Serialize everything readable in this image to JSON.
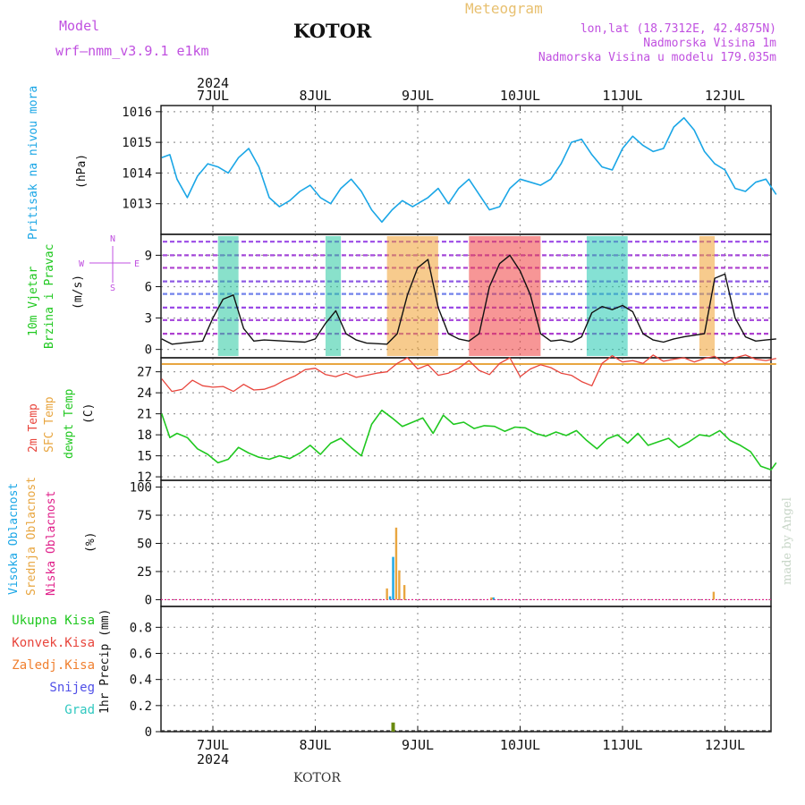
{
  "header": {
    "model_label": "Model",
    "model_name": "wrf–nmm_v3.9.1  e1km",
    "station": "KOTOR",
    "meteogram": "Meteogram",
    "lonlat": "lon,lat (18.7312E, 42.4875N)",
    "altitude": "Nadmorska Visina 1m",
    "model_altitude": "Nadmorska Visina u modelu 179.035m",
    "watermark": "made by Angel",
    "footer_station": "KOTOR"
  },
  "colors": {
    "pressure": "#1aa6e6",
    "t2m": "#e8453c",
    "sfc": "#e8a640",
    "dewpoint": "#20c820",
    "model": "#c050e0",
    "meteogram": "#e8c070"
  },
  "chart_data": [
    {
      "type": "line",
      "panel": "pressure",
      "ylabel": "(hPa)",
      "side_label": "Pritisak na nivou mora",
      "x_ticks": [
        "7JUL",
        "8JUL",
        "9JUL",
        "10JUL",
        "11JUL",
        "12JUL"
      ],
      "top_year": "2024",
      "yticks": [
        1013,
        1014,
        1015,
        1016
      ],
      "ylim": [
        1012.0,
        1016.2
      ],
      "series": [
        {
          "name": "Pritisak na nivou mora",
          "x": [
            -0.5,
            -0.42,
            -0.35,
            -0.25,
            -0.15,
            -0.05,
            0.05,
            0.15,
            0.25,
            0.35,
            0.45,
            0.55,
            0.65,
            0.75,
            0.85,
            0.95,
            1.05,
            1.15,
            1.25,
            1.35,
            1.45,
            1.55,
            1.65,
            1.75,
            1.85,
            1.95,
            2.0,
            2.1,
            2.2,
            2.3,
            2.4,
            2.5,
            2.6,
            2.7,
            2.8,
            2.9,
            3.0,
            3.1,
            3.2,
            3.3,
            3.4,
            3.5,
            3.6,
            3.7,
            3.8,
            3.9,
            4.0,
            4.1,
            4.2,
            4.3,
            4.4,
            4.5,
            4.6,
            4.7,
            4.8,
            4.9,
            5.0,
            5.1,
            5.2,
            5.3,
            5.4,
            5.5
          ],
          "values": [
            1014.5,
            1014.6,
            1013.8,
            1013.2,
            1013.9,
            1014.3,
            1014.2,
            1014.0,
            1014.5,
            1014.8,
            1014.2,
            1013.2,
            1012.9,
            1013.1,
            1013.4,
            1013.6,
            1013.2,
            1013.0,
            1013.5,
            1013.8,
            1013.4,
            1012.8,
            1012.4,
            1012.8,
            1013.1,
            1012.9,
            1013.0,
            1013.2,
            1013.5,
            1013.0,
            1013.5,
            1013.8,
            1013.3,
            1012.8,
            1012.9,
            1013.5,
            1013.8,
            1013.7,
            1013.6,
            1013.8,
            1014.3,
            1015.0,
            1015.1,
            1014.6,
            1014.2,
            1014.1,
            1014.8,
            1015.2,
            1014.9,
            1014.7,
            1014.8,
            1015.5,
            1015.8,
            1015.4,
            1014.7,
            1014.3,
            1014.1,
            1013.5,
            1013.4,
            1013.7,
            1013.8,
            1013.3
          ]
        }
      ]
    },
    {
      "type": "line",
      "panel": "wind",
      "ylabel": "(m/s)",
      "side_labels": [
        "10m Vjetar",
        "Brzina i Pravac"
      ],
      "compass": [
        "N",
        "S",
        "W",
        "E"
      ],
      "yticks": [
        0,
        3,
        6,
        9
      ],
      "ylim": [
        -0.8,
        11
      ],
      "series": [
        {
          "name": "10m Vjetar",
          "x": [
            -0.5,
            -0.4,
            -0.3,
            -0.1,
            0.0,
            0.1,
            0.2,
            0.3,
            0.4,
            0.5,
            0.7,
            0.9,
            1.0,
            1.1,
            1.2,
            1.3,
            1.4,
            1.5,
            1.7,
            1.8,
            1.9,
            2.0,
            2.1,
            2.2,
            2.3,
            2.4,
            2.5,
            2.6,
            2.7,
            2.8,
            2.9,
            3.0,
            3.1,
            3.2,
            3.3,
            3.4,
            3.5,
            3.6,
            3.7,
            3.8,
            3.9,
            4.0,
            4.1,
            4.2,
            4.3,
            4.4,
            4.5,
            4.6,
            4.8,
            4.9,
            5.0,
            5.1,
            5.2,
            5.3,
            5.4,
            5.5
          ],
          "values": [
            1.0,
            0.5,
            0.6,
            0.8,
            3.0,
            4.8,
            5.2,
            2.0,
            0.8,
            0.9,
            0.8,
            0.7,
            1.0,
            2.5,
            3.7,
            1.5,
            0.9,
            0.6,
            0.5,
            1.5,
            5.2,
            7.8,
            8.6,
            4.0,
            1.5,
            1.0,
            0.8,
            1.5,
            6.0,
            8.2,
            9.0,
            7.5,
            5.2,
            1.5,
            0.8,
            0.9,
            0.7,
            1.2,
            3.5,
            4.1,
            3.8,
            4.2,
            3.6,
            1.5,
            0.9,
            0.7,
            1.0,
            1.2,
            1.5,
            6.8,
            7.2,
            3.0,
            1.2,
            0.8,
            0.9,
            1.0
          ]
        }
      ]
    },
    {
      "type": "line",
      "panel": "temperature",
      "ylabel": "(C)",
      "side_labels": [
        "2m Temp",
        "SFC Temp",
        "dewpt Temp"
      ],
      "yticks": [
        12,
        15,
        18,
        21,
        24,
        27
      ],
      "ylim": [
        11.5,
        29
      ],
      "series": [
        {
          "name": "2m Temp",
          "x": [
            -0.5,
            -0.4,
            -0.3,
            -0.2,
            -0.1,
            0.0,
            0.1,
            0.2,
            0.3,
            0.4,
            0.5,
            0.6,
            0.7,
            0.8,
            0.9,
            1.0,
            1.1,
            1.2,
            1.3,
            1.4,
            1.5,
            1.6,
            1.7,
            1.8,
            1.9,
            2.0,
            2.1,
            2.2,
            2.3,
            2.4,
            2.5,
            2.6,
            2.7,
            2.8,
            2.9,
            3.0,
            3.1,
            3.2,
            3.3,
            3.4,
            3.5,
            3.6,
            3.7,
            3.8,
            3.9,
            4.0,
            4.1,
            4.2,
            4.3,
            4.4,
            4.5,
            4.6,
            4.7,
            4.8,
            4.9,
            5.0,
            5.1,
            5.2,
            5.3,
            5.4,
            5.5
          ],
          "values": [
            26.0,
            24.2,
            24.5,
            25.8,
            25.0,
            24.8,
            24.9,
            24.2,
            25.2,
            24.4,
            24.5,
            25.0,
            25.8,
            26.4,
            27.3,
            27.5,
            26.6,
            26.3,
            26.8,
            26.2,
            26.5,
            26.8,
            27.0,
            28.2,
            29.0,
            27.4,
            28.0,
            26.5,
            26.8,
            27.5,
            28.6,
            27.2,
            26.6,
            28.2,
            29.0,
            26.3,
            27.4,
            28.0,
            27.6,
            26.8,
            26.5,
            25.6,
            25.0,
            28.2,
            29.3,
            28.4,
            28.6,
            28.2,
            29.4,
            28.5,
            28.8,
            29.0,
            28.4,
            28.9,
            29.2,
            28.2,
            29.0,
            29.4,
            28.8,
            28.6,
            28.9
          ]
        },
        {
          "name": "SFC Temp",
          "x": [
            -0.5,
            5.5
          ],
          "values": [
            28.1,
            28.1
          ]
        },
        {
          "name": "dewpt Temp",
          "x": [
            -0.5,
            -0.42,
            -0.35,
            -0.25,
            -0.15,
            -0.05,
            0.05,
            0.15,
            0.25,
            0.35,
            0.45,
            0.55,
            0.65,
            0.75,
            0.85,
            0.95,
            1.05,
            1.15,
            1.25,
            1.35,
            1.45,
            1.55,
            1.65,
            1.75,
            1.85,
            1.95,
            2.05,
            2.15,
            2.25,
            2.35,
            2.45,
            2.55,
            2.65,
            2.75,
            2.85,
            2.95,
            3.05,
            3.15,
            3.25,
            3.35,
            3.45,
            3.55,
            3.65,
            3.75,
            3.85,
            3.95,
            4.05,
            4.15,
            4.25,
            4.35,
            4.45,
            4.55,
            4.65,
            4.75,
            4.85,
            4.95,
            5.05,
            5.15,
            5.25,
            5.35,
            5.45,
            5.5
          ],
          "values": [
            21.0,
            17.6,
            18.2,
            17.6,
            16.0,
            15.2,
            14.0,
            14.5,
            16.2,
            15.4,
            14.8,
            14.5,
            15.0,
            14.6,
            15.4,
            16.5,
            15.2,
            16.8,
            17.5,
            16.2,
            15.0,
            19.5,
            21.5,
            20.4,
            19.2,
            19.8,
            20.4,
            18.2,
            20.8,
            19.5,
            19.8,
            18.9,
            19.3,
            19.2,
            18.5,
            19.1,
            19.0,
            18.2,
            17.8,
            18.4,
            17.9,
            18.6,
            17.2,
            16.0,
            17.4,
            18.0,
            16.8,
            18.2,
            16.5,
            17.0,
            17.5,
            16.2,
            17.0,
            18.0,
            17.8,
            18.6,
            17.2,
            16.5,
            15.6,
            13.5,
            13.0,
            14.0
          ]
        }
      ]
    },
    {
      "type": "bar",
      "panel": "cloud",
      "ylabel": "(%)",
      "side_labels": [
        "Visoka Oblacnost",
        "Srednja Oblacnost",
        "Niska Oblacnost"
      ],
      "yticks": [
        0,
        25,
        50,
        75,
        100
      ],
      "ylim": [
        -6,
        106
      ],
      "series": [
        {
          "name": "Visoka Oblacnost",
          "x": [
            1.73,
            1.76,
            2.74
          ],
          "values": [
            3,
            38,
            2
          ]
        },
        {
          "name": "Srednja Oblacnost",
          "x": [
            1.7,
            1.79,
            1.82,
            1.87,
            2.72,
            4.89
          ],
          "values": [
            10,
            64,
            26,
            13,
            2,
            7
          ]
        },
        {
          "name": "Niska Oblacnost",
          "x": [],
          "values": []
        }
      ]
    },
    {
      "type": "bar",
      "panel": "precip",
      "ylabel": "1hr Precip (mm)",
      "side_labels": [
        "Ukupna Kisa",
        "Konvek.Kisa",
        "Zaledj.Kisa",
        "Snijeg",
        "Grad"
      ],
      "yticks": [
        0,
        0.2,
        0.4,
        0.6,
        0.8
      ],
      "ytick_labels": [
        "0",
        "0.2",
        "0.4",
        "0.6",
        "0.8"
      ],
      "ylim": [
        0,
        0.96
      ],
      "x_ticks": [
        "7JUL",
        "8JUL",
        "9JUL",
        "10JUL",
        "11JUL",
        "12JUL"
      ],
      "bottom_year": "2024",
      "series": [
        {
          "name": "Ukupna Kisa",
          "x": [
            1.76
          ],
          "values": [
            0.07
          ]
        }
      ]
    }
  ]
}
